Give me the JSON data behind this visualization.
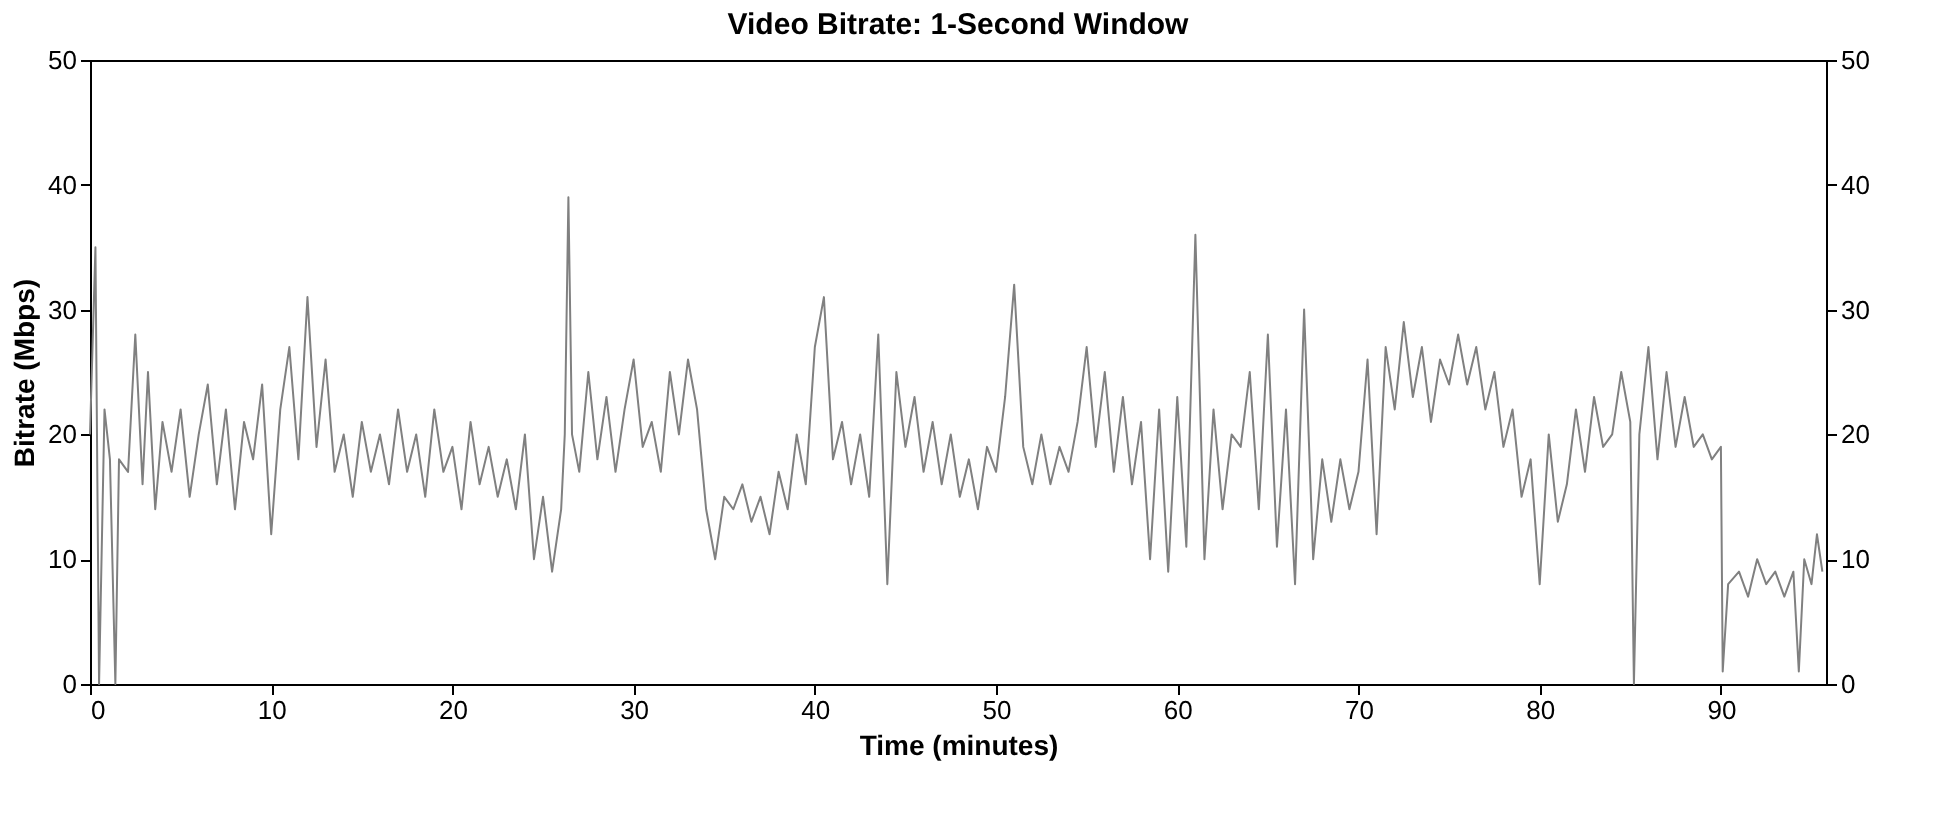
{
  "chart_data": {
    "type": "line",
    "title": "Video Bitrate: 1-Second Window",
    "xlabel": "Time (minutes)",
    "ylabel": "Bitrate (Mbps)",
    "x": [
      0,
      0.3,
      0.5,
      0.8,
      1.1,
      1.4,
      1.6,
      2.1,
      2.5,
      2.9,
      3.2,
      3.6,
      4,
      4.5,
      5,
      5.5,
      6,
      6.5,
      7,
      7.5,
      8,
      8.5,
      9,
      9.5,
      10,
      10.5,
      11,
      11.5,
      12,
      12.5,
      13,
      13.5,
      14,
      14.5,
      15,
      15.5,
      16,
      16.5,
      17,
      17.5,
      18,
      18.5,
      19,
      19.5,
      20,
      20.5,
      21,
      21.5,
      22,
      22.5,
      23,
      23.5,
      24,
      24.5,
      25,
      25.5,
      26,
      26.2,
      26.4,
      26.6,
      27,
      27.5,
      28,
      28.5,
      29,
      29.5,
      30,
      30.5,
      31,
      31.5,
      32,
      32.5,
      33,
      33.5,
      34,
      34.5,
      35,
      35.5,
      36,
      36.5,
      37,
      37.5,
      38,
      38.5,
      39,
      39.5,
      40,
      40.5,
      41,
      41.5,
      42,
      42.5,
      43,
      43.5,
      44,
      44.5,
      45,
      45.5,
      46,
      46.5,
      47,
      47.5,
      48,
      48.5,
      49,
      49.5,
      50,
      50.5,
      51,
      51.5,
      52,
      52.5,
      53,
      53.5,
      54,
      54.5,
      55,
      55.5,
      56,
      56.5,
      57,
      57.5,
      58,
      58.5,
      59,
      59.5,
      60,
      60.5,
      61,
      61.5,
      62,
      62.5,
      63,
      63.5,
      64,
      64.5,
      65,
      65.5,
      66,
      66.5,
      67,
      67.5,
      68,
      68.5,
      69,
      69.5,
      70,
      70.5,
      71,
      71.5,
      72,
      72.5,
      73,
      73.5,
      74,
      74.5,
      75,
      75.5,
      76,
      76.5,
      77,
      77.5,
      78,
      78.5,
      79,
      79.5,
      80,
      80.5,
      81,
      81.5,
      82,
      82.5,
      83,
      83.5,
      84,
      84.5,
      85,
      85.2,
      85.5,
      86,
      86.5,
      87,
      87.5,
      88,
      88.5,
      89,
      89.5,
      90,
      90.1,
      90.4,
      91,
      91.5,
      92,
      92.5,
      93,
      93.5,
      94,
      94.3,
      94.6,
      95,
      95.3,
      95.6
    ],
    "series": [
      {
        "color": "#808080",
        "values": [
          20,
          35,
          0,
          22,
          18,
          0,
          18,
          17,
          28,
          16,
          25,
          14,
          21,
          17,
          22,
          15,
          20,
          24,
          16,
          22,
          14,
          21,
          18,
          24,
          12,
          22,
          27,
          18,
          31,
          19,
          26,
          17,
          20,
          15,
          21,
          17,
          20,
          16,
          22,
          17,
          20,
          15,
          22,
          17,
          19,
          14,
          21,
          16,
          19,
          15,
          18,
          14,
          20,
          10,
          15,
          9,
          14,
          20,
          39,
          20,
          17,
          25,
          18,
          23,
          17,
          22,
          26,
          19,
          21,
          17,
          25,
          20,
          26,
          22,
          14,
          10,
          15,
          14,
          16,
          13,
          15,
          12,
          17,
          14,
          20,
          16,
          27,
          31,
          18,
          21,
          16,
          20,
          15,
          28,
          8,
          25,
          19,
          23,
          17,
          21,
          16,
          20,
          15,
          18,
          14,
          19,
          17,
          23,
          32,
          19,
          16,
          20,
          16,
          19,
          17,
          21,
          27,
          19,
          25,
          17,
          23,
          16,
          21,
          10,
          22,
          9,
          23,
          11,
          36,
          10,
          22,
          14,
          20,
          19,
          25,
          14,
          28,
          11,
          22,
          8,
          30,
          10,
          18,
          13,
          18,
          14,
          17,
          26,
          12,
          27,
          22,
          29,
          23,
          27,
          21,
          26,
          24,
          28,
          24,
          27,
          22,
          25,
          19,
          22,
          15,
          18,
          8,
          20,
          13,
          16,
          22,
          17,
          23,
          19,
          20,
          25,
          21,
          0,
          20,
          27,
          18,
          25,
          19,
          23,
          19,
          20,
          18,
          19,
          1,
          8,
          9,
          7,
          10,
          8,
          9,
          7,
          9,
          1,
          10,
          8,
          12,
          9
        ]
      }
    ],
    "xlim": [
      0,
      95.8
    ],
    "xticks": [
      0,
      10,
      20,
      30,
      40,
      50,
      60,
      70,
      80,
      90
    ],
    "ylim": [
      0,
      50
    ],
    "yticks": [
      0,
      10,
      20,
      30,
      40,
      50
    ],
    "y2lim": [
      0,
      50
    ],
    "y2ticks": [
      0,
      10,
      20,
      30,
      40,
      50
    ],
    "grid": false,
    "legend": false
  }
}
